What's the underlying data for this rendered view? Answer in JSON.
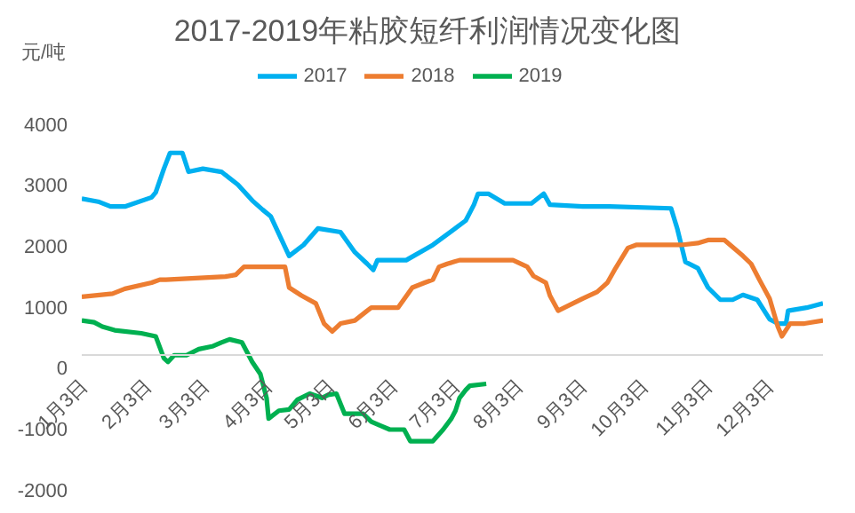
{
  "chart_data": {
    "type": "line",
    "title": "2017-2019年粘胶短纤利润情况变化图",
    "ylabel": "元/吨",
    "legend": "top",
    "marker": "none",
    "xlim": [
      "--01-03",
      "--12-30"
    ],
    "xticks": [
      {
        "value": "--01-03",
        "label": "1月3日"
      },
      {
        "value": "--02-03",
        "label": "2月3日"
      },
      {
        "value": "--03-03",
        "label": "3月3日"
      },
      {
        "value": "--04-03",
        "label": "4月3日"
      },
      {
        "value": "--05-03",
        "label": "5月3日"
      },
      {
        "value": "--06-03",
        "label": "6月3日"
      },
      {
        "value": "--07-03",
        "label": "7月3日"
      },
      {
        "value": "--08-03",
        "label": "8月3日"
      },
      {
        "value": "--09-03",
        "label": "9月3日"
      },
      {
        "value": "--10-03",
        "label": "10月3日"
      },
      {
        "value": "--11-03",
        "label": "11月3日"
      },
      {
        "value": "--12-03",
        "label": "12月3日"
      }
    ],
    "ylim": [
      -2000,
      4000
    ],
    "yticks": [
      -2000,
      -1000,
      0,
      1000,
      2000,
      3000,
      4000
    ],
    "series": [
      {
        "name": "2017",
        "color": "#00b0f0",
        "x": [
          "--01-03",
          "--01-11",
          "--01-17",
          "--01-24",
          "--02-06",
          "--02-08",
          "--02-12",
          "--02-15",
          "--02-21",
          "--02-24",
          "--03-03",
          "--03-12",
          "--03-20",
          "--03-27",
          "--04-01",
          "--04-05",
          "--04-14",
          "--04-21",
          "--04-28",
          "--05-09",
          "--05-16",
          "--05-22",
          "--05-25",
          "--05-27",
          "--06-10",
          "--06-23",
          "--07-09",
          "--07-13",
          "--07-15",
          "--07-20",
          "--07-28",
          "--08-10",
          "--08-16",
          "--08-19",
          "--09-04",
          "--09-17",
          "--10-17",
          "--10-20",
          "--10-24",
          "--10-30",
          "--11-04",
          "--11-10",
          "--11-16",
          "--11-21",
          "--11-28",
          "--12-04",
          "--12-08",
          "--12-12",
          "--12-13",
          "--12-22",
          "--12-30"
        ],
        "values": [
          2780,
          2730,
          2650,
          2650,
          2800,
          2880,
          3270,
          3530,
          3530,
          3220,
          3270,
          3220,
          3010,
          2750,
          2600,
          2490,
          1840,
          2020,
          2290,
          2230,
          1900,
          1710,
          1610,
          1770,
          1770,
          2020,
          2420,
          2680,
          2860,
          2860,
          2700,
          2700,
          2860,
          2680,
          2650,
          2650,
          2620,
          2290,
          1740,
          1640,
          1320,
          1120,
          1120,
          1200,
          1120,
          800,
          730,
          730,
          940,
          990,
          1060
        ]
      },
      {
        "name": "2018",
        "color": "#ed7d31",
        "x": [
          "--01-03",
          "--01-18",
          "--01-24",
          "--02-06",
          "--02-10",
          "--02-13",
          "--03-14",
          "--03-19",
          "--03-23",
          "--04-12",
          "--04-14",
          "--04-20",
          "--04-27",
          "--05-01",
          "--05-05",
          "--05-09",
          "--05-16",
          "--05-22",
          "--05-24",
          "--06-06",
          "--06-13",
          "--06-19",
          "--06-23",
          "--06-26",
          "--06-30",
          "--07-06",
          "--08-01",
          "--08-08",
          "--08-11",
          "--08-17",
          "--08-19",
          "--08-23",
          "--08-26",
          "--09-04",
          "--09-11",
          "--09-16",
          "--09-20",
          "--09-26",
          "--09-30",
          "--10-22",
          "--10-30",
          "--11-04",
          "--11-12",
          "--11-21",
          "--11-25",
          "--11-29",
          "--12-04",
          "--12-08",
          "--12-10",
          "--12-14",
          "--12-21",
          "--12-30"
        ],
        "values": [
          1170,
          1220,
          1300,
          1400,
          1450,
          1450,
          1500,
          1530,
          1660,
          1660,
          1320,
          1190,
          1060,
          730,
          600,
          730,
          780,
          940,
          990,
          990,
          1320,
          1400,
          1450,
          1660,
          1710,
          1770,
          1770,
          1660,
          1510,
          1400,
          1190,
          940,
          990,
          1140,
          1250,
          1400,
          1640,
          1970,
          2020,
          2020,
          2050,
          2100,
          2100,
          1840,
          1710,
          1450,
          1140,
          680,
          520,
          730,
          730,
          780
        ]
      },
      {
        "name": "2019",
        "color": "#00b050",
        "x": [
          "--01-03",
          "--01-09",
          "--01-13",
          "--01-19",
          "--02-01",
          "--02-08",
          "--02-12",
          "--02-14",
          "--02-17",
          "--02-23",
          "--03-01",
          "--03-08",
          "--03-12",
          "--03-16",
          "--03-22",
          "--03-27",
          "--03-31",
          "--04-03",
          "--04-04",
          "--04-09",
          "--04-14",
          "--04-18",
          "--04-24",
          "--04-30",
          "--05-03",
          "--05-07",
          "--05-11",
          "--05-20",
          "--05-24",
          "--05-28",
          "--06-02",
          "--06-09",
          "--06-12",
          "--06-23",
          "--06-28",
          "--07-02",
          "--07-04",
          "--07-06",
          "--07-09",
          "--07-11",
          "--07-19"
        ],
        "values": [
          780,
          750,
          680,
          620,
          570,
          520,
          160,
          100,
          210,
          210,
          310,
          360,
          420,
          470,
          420,
          100,
          -100,
          -490,
          -830,
          -700,
          -680,
          -520,
          -420,
          -490,
          -440,
          -420,
          -750,
          -750,
          -880,
          -940,
          -1010,
          -1010,
          -1200,
          -1200,
          -1010,
          -830,
          -700,
          -490,
          -360,
          -290,
          -260
        ]
      }
    ]
  }
}
